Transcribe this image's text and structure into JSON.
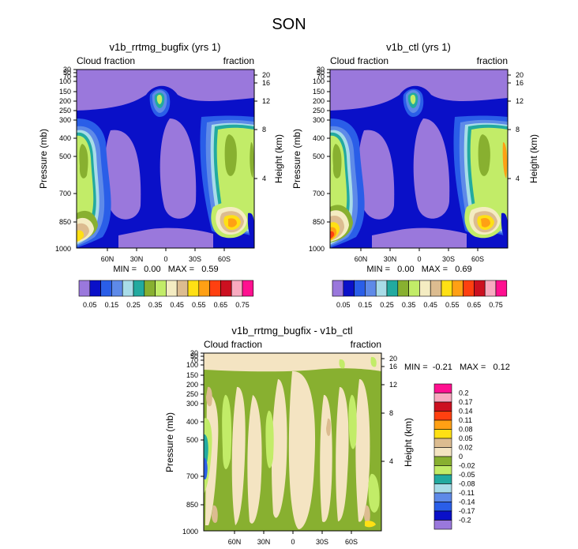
{
  "main_title": "SON",
  "colors": {
    "abs_levels": [
      "#9a78dc",
      "#0a10c8",
      "#2a5ee8",
      "#5e8ae8",
      "#a8dce8",
      "#22aaa0",
      "#88b030",
      "#c2ec68",
      "#f4ecc2",
      "#dcbc90",
      "#ffe014",
      "#ffa014",
      "#ff4010",
      "#cc1020",
      "#f8aac0",
      "#ff1090"
    ],
    "diff_levels": [
      "#9a78dc",
      "#0a10c8",
      "#2a5ee8",
      "#5e8ae8",
      "#a8dce8",
      "#22aaa0",
      "#c2ec68",
      "#88b030",
      "#f4e4c2",
      "#dcbc90",
      "#ffe014",
      "#ffa014",
      "#ff4010",
      "#cc1020",
      "#f8aac0",
      "#ff1090"
    ]
  },
  "chart_data": [
    {
      "type": "contour",
      "title": "v1b_rrtmg_bugfix (yrs 1)",
      "left_label": "Cloud fraction",
      "right_label": "fraction",
      "ylabel": "Pressure (mb)",
      "y2label": "Height (km)",
      "yticks": [
        "30",
        "50",
        "70",
        "100",
        "150",
        "200",
        "250",
        "300",
        "400",
        "500",
        "700",
        "850",
        "1000"
      ],
      "y2ticks": [
        "20",
        "16",
        "12",
        "8",
        "4"
      ],
      "xticks": [
        "60N",
        "30N",
        "0",
        "30S",
        "60S"
      ],
      "stats": "MIN =   0.00   MAX =   0.59",
      "colorbar_labels": [
        "0.05",
        "0.15",
        "0.25",
        "0.35",
        "0.45",
        "0.55",
        "0.65",
        "0.75"
      ]
    },
    {
      "type": "contour",
      "title": "v1b_ctl (yrs 1)",
      "left_label": "Cloud fraction",
      "right_label": "fraction",
      "ylabel": "Pressure (mb)",
      "y2label": "Height (km)",
      "yticks": [
        "30",
        "50",
        "70",
        "100",
        "150",
        "200",
        "250",
        "300",
        "400",
        "500",
        "700",
        "850",
        "1000"
      ],
      "y2ticks": [
        "20",
        "16",
        "12",
        "8",
        "4"
      ],
      "xticks": [
        "60N",
        "30N",
        "0",
        "30S",
        "60S"
      ],
      "stats": "MIN =   0.00   MAX =   0.69",
      "colorbar_labels": [
        "0.05",
        "0.15",
        "0.25",
        "0.35",
        "0.45",
        "0.55",
        "0.65",
        "0.75"
      ]
    },
    {
      "type": "contour",
      "title": "v1b_rrtmg_bugfix - v1b_ctl",
      "left_label": "Cloud fraction",
      "right_label": "fraction",
      "ylabel": "Pressure (mb)",
      "y2label": "Height (km)",
      "yticks": [
        "30",
        "50",
        "70",
        "100",
        "150",
        "200",
        "250",
        "300",
        "400",
        "500",
        "700",
        "850",
        "1000"
      ],
      "y2ticks": [
        "20",
        "16",
        "12",
        "8",
        "4"
      ],
      "xticks": [
        "60N",
        "30N",
        "0",
        "30S",
        "60S"
      ],
      "stats": "MIN =  -0.21   MAX =   0.12",
      "colorbar_labels": [
        "0.2",
        "0.17",
        "0.14",
        "0.11",
        "0.08",
        "0.05",
        "0.02",
        "0",
        "-0.02",
        "-0.05",
        "-0.08",
        "-0.11",
        "-0.14",
        "-0.17",
        "-0.2"
      ]
    }
  ]
}
